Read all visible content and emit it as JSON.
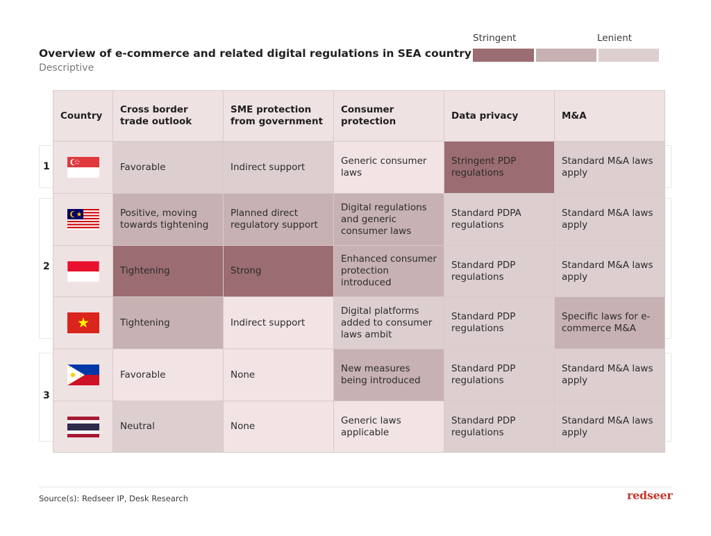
{
  "title": "Overview of e-commerce and related digital regulations in SEA country",
  "subtitle": "Descriptive",
  "legend": {
    "left_label": "Stringent",
    "right_label": "Lenient",
    "colors": [
      "#9b6d72",
      "#c7b1b3",
      "#ddcfd0"
    ]
  },
  "colors": {
    "stringent": "#9b6d72",
    "moderate": "#c7b1b3",
    "mild": "#ddcfd0",
    "lenient": "#f2e4e5",
    "header": "#efe2e3",
    "brand": "#c0392b"
  },
  "groups": [
    "1",
    "2",
    "3"
  ],
  "chart_data": {
    "type": "table",
    "columns": [
      "Country",
      "Cross border trade outlook",
      "SME protection from government",
      "Consumer protection",
      "Data privacy",
      "M&A"
    ],
    "rows": [
      {
        "group": "1",
        "flag": "singapore-flag-icon",
        "cells": [
          "Favorable",
          "Indirect support",
          "Generic consumer laws",
          "Stringent PDP regulations",
          "Standard M&A laws apply"
        ],
        "levels": [
          2,
          2,
          1,
          4,
          2
        ]
      },
      {
        "group": "2",
        "flag": "malaysia-flag-icon",
        "cells": [
          "Positive, moving towards tightening",
          "Planned direct regulatory support",
          "Digital regulations and generic consumer laws",
          "Standard PDPA regulations",
          "Standard M&A laws apply"
        ],
        "levels": [
          3,
          3,
          3,
          2,
          2
        ]
      },
      {
        "group": "2",
        "flag": "indonesia-flag-icon",
        "cells": [
          "Tightening",
          "Strong",
          "Enhanced consumer protection introduced",
          "Standard PDP regulations",
          "Standard M&A laws apply"
        ],
        "levels": [
          4,
          4,
          3,
          2,
          2
        ]
      },
      {
        "group": "2",
        "flag": "vietnam-flag-icon",
        "cells": [
          "Tightening",
          "Indirect support",
          "Digital platforms added to consumer laws ambit",
          "Standard PDP regulations",
          "Specific laws for e-commerce M&A"
        ],
        "levels": [
          3,
          1,
          2,
          2,
          3
        ]
      },
      {
        "group": "3",
        "flag": "philippines-flag-icon",
        "cells": [
          "Favorable",
          "None",
          "New measures being introduced",
          "Standard PDP regulations",
          "Standard M&A laws apply"
        ],
        "levels": [
          1,
          1,
          3,
          2,
          2
        ]
      },
      {
        "group": "3",
        "flag": "thailand-flag-icon",
        "cells": [
          "Neutral",
          "None",
          "Generic laws applicable",
          "Standard PDP regulations",
          "Standard M&A laws apply"
        ],
        "levels": [
          2,
          1,
          1,
          2,
          2
        ]
      }
    ]
  },
  "source": "Source(s): Redseer IP, Desk Research",
  "brand": "redseer"
}
